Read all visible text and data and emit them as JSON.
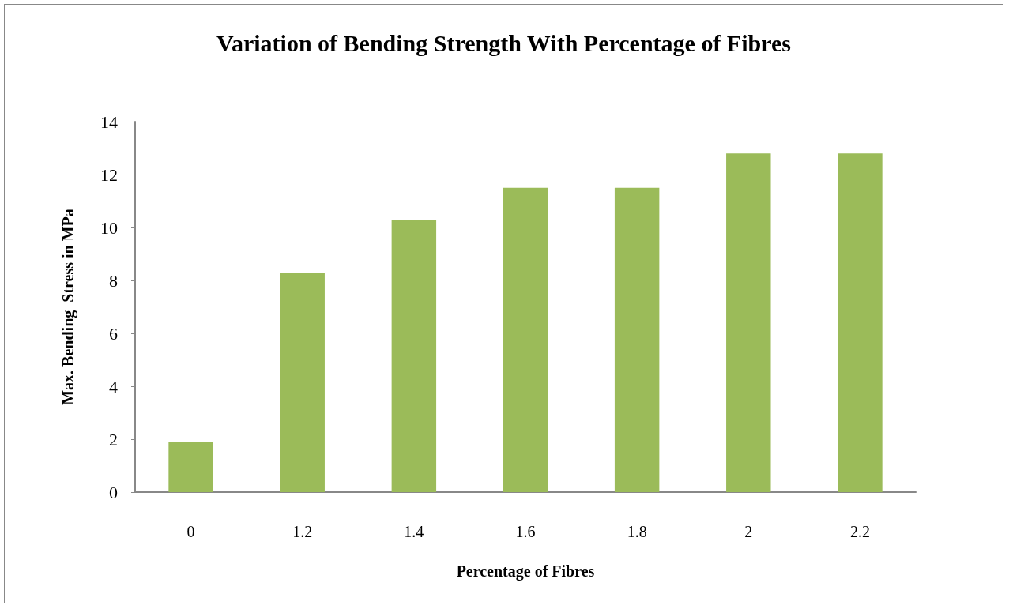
{
  "chart_data": {
    "type": "bar",
    "title": "Variation of Bending Strength With Percentage of Fibres",
    "xlabel": "Percentage of Fibres",
    "ylabel": "Max. Bending  Stress in MPa",
    "categories": [
      "0",
      "1.2",
      "1.4",
      "1.6",
      "1.8",
      "2",
      "2.2"
    ],
    "values": [
      1.9,
      8.3,
      10.3,
      11.5,
      11.5,
      12.8,
      12.8
    ],
    "color": "#9bbb59",
    "ylim": [
      0,
      14
    ],
    "yticks": [
      0,
      2,
      4,
      6,
      8,
      10,
      12,
      14
    ],
    "grid": false
  }
}
